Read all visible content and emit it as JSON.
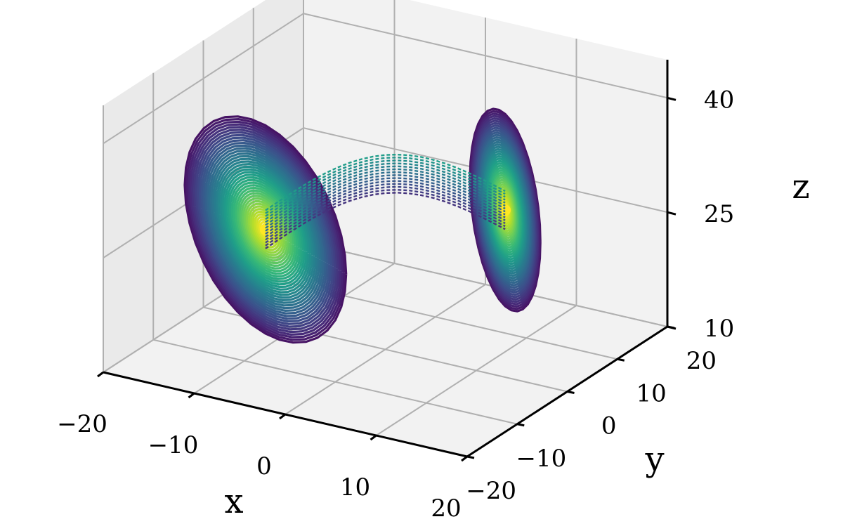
{
  "chart_data": {
    "type": "line",
    "projection": "3d",
    "system": "lorenz",
    "colormap": "viridis",
    "xlabel": "x",
    "ylabel": "y",
    "zlabel": "z",
    "xlim": [
      -20,
      20
    ],
    "ylim": [
      -20,
      20
    ],
    "zlim": [
      10,
      45
    ],
    "x_ticks": [
      -20,
      -10,
      0,
      10,
      20
    ],
    "y_ticks": [
      -20,
      -10,
      0,
      10,
      20
    ],
    "z_ticks": [
      10,
      25,
      40
    ],
    "x_tick_labels": [
      "−20",
      "−10",
      "0",
      "10",
      "20"
    ],
    "y_tick_labels": [
      "−20",
      "−10",
      "0",
      "10",
      "20"
    ],
    "z_tick_labels": [
      "10",
      "25",
      "40"
    ],
    "grid": true,
    "lobes": [
      {
        "name": "left lobe",
        "center": [
          -8.5,
          -8.5,
          27
        ],
        "outer_radius": 13
      },
      {
        "name": "right lobe",
        "center": [
          8.5,
          8.5,
          27
        ],
        "outer_radius": 12
      }
    ],
    "colors": {
      "viridis": [
        "#440154",
        "#482878",
        "#3e4a89",
        "#31688e",
        "#26828e",
        "#1f9e89",
        "#35b779",
        "#6ece58",
        "#b5de2b",
        "#fde725"
      ],
      "pane": "#f2f2f2",
      "grid": "#b0b0b0"
    }
  }
}
